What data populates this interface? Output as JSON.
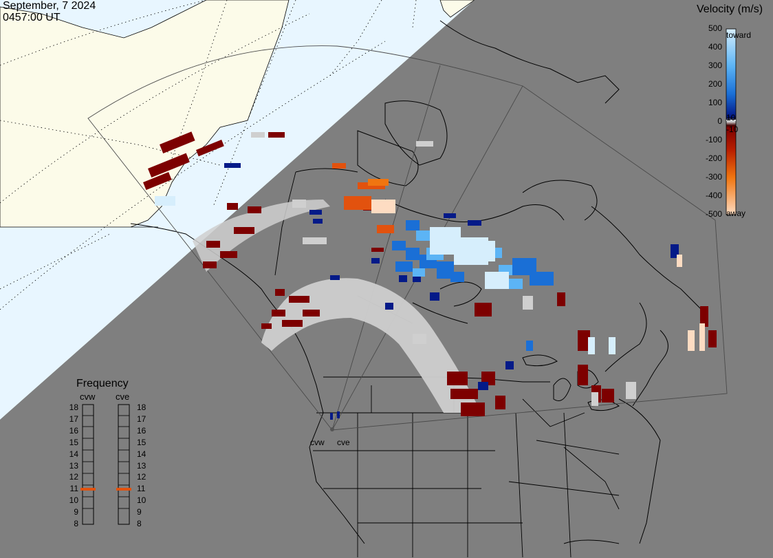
{
  "header": {
    "date": "September, 7 2024",
    "time": "0457:00 UT"
  },
  "velocity_scale": {
    "title": "Velocity (m/s)",
    "ticks": [
      "500",
      "400",
      "300",
      "200",
      "100",
      "0",
      "-100",
      "-200",
      "-300",
      "-400",
      "-500"
    ],
    "small_ticks": [
      "10",
      "-10"
    ],
    "toward_label": "toward",
    "away_label": "away",
    "colors": {
      "toward_max": "#d6eefc",
      "toward_mid": "#2a86e0",
      "toward_min": "#041a88",
      "away_min": "#7d0000",
      "away_mid": "#e2520e",
      "away_max": "#fddcc2",
      "ground_scatter": "#cfcfcf"
    }
  },
  "frequency_panel": {
    "title": "Frequency",
    "radars": [
      "cvw",
      "cve"
    ],
    "levels": [
      "18",
      "17",
      "16",
      "15",
      "14",
      "13",
      "12",
      "11",
      "10",
      "9",
      "8"
    ],
    "current_mhz": {
      "cvw": 10.9,
      "cve": 10.9
    },
    "indicator_color": "#e2520e"
  },
  "map": {
    "radar_site_labels": [
      "cvw",
      "cve"
    ],
    "night_color": "#7f7f7f",
    "day_ocean_color": "#e8f6ff",
    "day_land_color": "#fcfbe9",
    "field_of_view_color": "#4a4a4a"
  }
}
